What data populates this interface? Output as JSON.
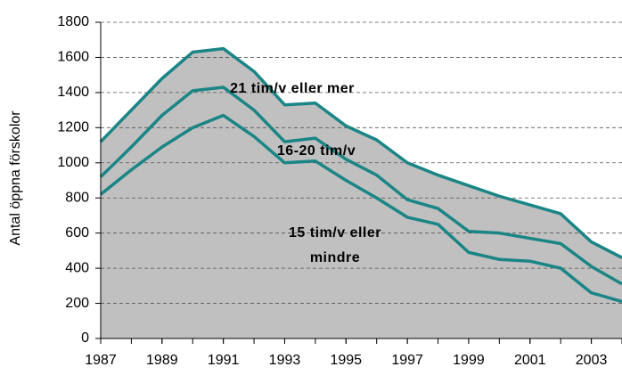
{
  "chart_data": {
    "type": "stacked-area",
    "y_label": "Antal öppna förskolor",
    "x": [
      1987,
      1988,
      1989,
      1990,
      1991,
      1992,
      1993,
      1994,
      1995,
      1996,
      1997,
      1998,
      1999,
      2000,
      2001,
      2002,
      2003,
      2004
    ],
    "series": [
      {
        "name": "15 tim/v eller mindre",
        "color": "#1b8585",
        "values": [
          820,
          960,
          1090,
          1200,
          1270,
          1150,
          1000,
          1010,
          900,
          800,
          690,
          650,
          490,
          450,
          440,
          400,
          260,
          210
        ]
      },
      {
        "name": "16-20 tim/v",
        "color": "#1b8585",
        "values": [
          100,
          130,
          180,
          210,
          160,
          150,
          120,
          130,
          120,
          130,
          100,
          90,
          120,
          150,
          130,
          140,
          150,
          100
        ]
      },
      {
        "name": "21 tim/v eller mer",
        "color": "#1b8585",
        "values": [
          200,
          210,
          210,
          220,
          220,
          220,
          210,
          200,
          190,
          200,
          210,
          190,
          260,
          210,
          190,
          170,
          140,
          150
        ]
      }
    ],
    "area_color": "#c0c0c0",
    "xlim": [
      1987,
      2004
    ],
    "xticks": [
      1987,
      1989,
      1991,
      1993,
      1995,
      1997,
      1999,
      2001,
      2003
    ],
    "ylim": [
      0,
      1800
    ],
    "yticks": [
      0,
      200,
      400,
      600,
      800,
      1000,
      1200,
      1400,
      1600,
      1800
    ],
    "grid": true
  }
}
